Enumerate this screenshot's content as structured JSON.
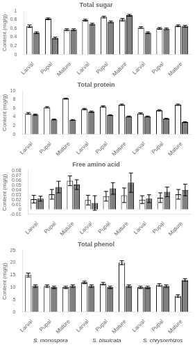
{
  "chart_data": [
    {
      "type": "bar",
      "title": "Total sugar",
      "ylabel": "Content (mg/g)",
      "categories": [
        "Larval",
        "Pupal",
        "Mature",
        "Larval",
        "Pupal",
        "Mature",
        "Larval",
        "Pupal",
        "Mature"
      ],
      "series": [
        {
          "color": "white",
          "values": [
            0.65,
            0.82,
            0.57,
            0.79,
            0.86,
            0.8,
            0.62,
            0.6,
            0.66
          ],
          "errors": [
            0.03,
            0.02,
            0.02,
            0.02,
            0.02,
            0.03,
            0.02,
            0.02,
            0.02
          ]
        },
        {
          "color": "#808080",
          "values": [
            0.5,
            0.38,
            0.57,
            0.7,
            0.75,
            0.9,
            0.5,
            0.59,
            0.65
          ],
          "errors": [
            0.02,
            0.02,
            0.02,
            0.02,
            0.02,
            0.02,
            0.02,
            0.02,
            0.02
          ]
        }
      ],
      "ylim": [
        0,
        1.0
      ],
      "yticks": [
        0,
        0.2,
        0.4,
        0.6,
        0.8,
        1.0
      ],
      "grid": false
    },
    {
      "type": "bar",
      "title": "Total protein",
      "ylabel": "Content (mg/g)",
      "categories": [
        "Larval",
        "Pupal",
        "Mature",
        "Larval",
        "Pupal",
        "Mature",
        "Larval",
        "Pupal",
        "Mature"
      ],
      "series": [
        {
          "color": "white",
          "values": [
            4.8,
            6.2,
            8.2,
            5.8,
            6.4,
            6.8,
            4.8,
            5.5,
            6.8
          ],
          "errors": [
            0.2,
            0.15,
            0.12,
            0.15,
            0.15,
            0.15,
            0.15,
            0.15,
            0.15
          ]
        },
        {
          "color": "#808080",
          "values": [
            4.5,
            3.4,
            3.3,
            5.2,
            4.4,
            4.1,
            4.1,
            3.6,
            2.8
          ],
          "errors": [
            0.15,
            0.1,
            0.1,
            0.15,
            0.1,
            0.1,
            0.1,
            0.1,
            0.1
          ]
        }
      ],
      "ylim": [
        0,
        10
      ],
      "yticks": [
        0,
        2,
        4,
        6,
        8,
        10
      ],
      "grid": false
    },
    {
      "type": "bar",
      "title": "Free amino acid",
      "ylabel": "Content (mg/g)",
      "categories": [
        "Larval",
        "Pupal",
        "Mature",
        "Larval",
        "Pupal",
        "Mature",
        "Larval",
        "Pupal",
        "Mature"
      ],
      "series": [
        {
          "color": "white",
          "values": [
            0.021,
            0.031,
            0.059,
            0.019,
            0.027,
            0.029,
            0.02,
            0.024,
            0.031
          ],
          "errors": [
            0.008,
            0.01,
            0.01,
            0.01,
            0.01,
            0.015,
            0.008,
            0.01,
            0.01
          ]
        },
        {
          "color": "#808080",
          "values": [
            0.022,
            0.046,
            0.051,
            0.013,
            0.043,
            0.055,
            0.022,
            0.036,
            0.04
          ],
          "errors": [
            0.005,
            0.012,
            0.01,
            0.015,
            0.012,
            0.02,
            0.008,
            0.01,
            0.012
          ]
        }
      ],
      "ylim": [
        -0.01,
        0.08
      ],
      "yticks": [
        -0.01,
        0,
        0.01,
        0.02,
        0.03,
        0.04,
        0.05,
        0.06,
        0.07,
        0.08
      ],
      "grid": false
    },
    {
      "type": "bar",
      "title": "Total phenol",
      "ylabel": "Content (mg/g)",
      "categories": [
        "Larval",
        "Pupal",
        "Mature",
        "Larval",
        "Pupal",
        "Mature",
        "Larval",
        "Pupal",
        "Mature"
      ],
      "series": [
        {
          "color": "white",
          "values": [
            15.0,
            10.5,
            10.0,
            12.0,
            11.5,
            20.0,
            10.0,
            11.0,
            6.5
          ],
          "errors": [
            0.8,
            0.5,
            0.5,
            0.5,
            0.5,
            0.8,
            0.5,
            0.5,
            0.5
          ]
        },
        {
          "color": "#808080",
          "values": [
            10.5,
            10.0,
            10.5,
            10.5,
            10.0,
            10.5,
            10.0,
            10.5,
            13.0
          ],
          "errors": [
            0.5,
            0.5,
            0.5,
            0.5,
            0.5,
            0.5,
            0.5,
            0.5,
            0.5
          ]
        }
      ],
      "ylim": [
        0,
        25
      ],
      "yticks": [
        0,
        5,
        10,
        15,
        20,
        25
      ],
      "grid": false,
      "annotations": [
        "S. monospora",
        "S. bisulcata",
        "S. chrysorrhizos"
      ]
    }
  ]
}
